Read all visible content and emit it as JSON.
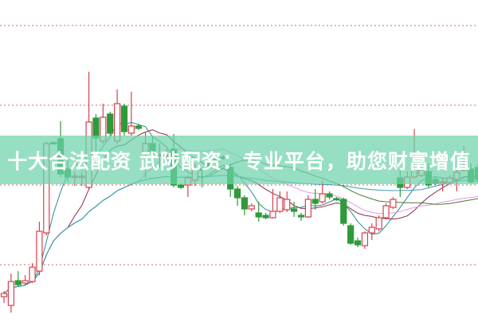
{
  "banner": {
    "title": "十大合法配资 武陟配资：专业平台，助您财富增值"
  },
  "colors": {
    "up": "#d9404e",
    "down": "#2e9a3a",
    "grid": "#d08a8a",
    "banner": "#6ed2aa"
  },
  "chart_data": {
    "type": "candlestick",
    "title": "",
    "xlabel": "",
    "ylabel": "",
    "ylim": [
      3.2,
      43.2
    ],
    "grid": true,
    "gridlines": [
      10,
      20,
      30,
      40
    ],
    "candles_ohlc": [
      [
        6.0,
        6.7,
        5.2,
        6.4
      ],
      [
        4.9,
        8.9,
        4.0,
        7.9
      ],
      [
        8.0,
        9.2,
        7.2,
        7.5
      ],
      [
        7.7,
        8.7,
        7.4,
        8.0
      ],
      [
        7.9,
        10.2,
        7.7,
        9.7
      ],
      [
        9.2,
        15.4,
        8.7,
        14.2
      ],
      [
        14.0,
        25.4,
        13.7,
        25.2
      ],
      [
        25.3,
        25.5,
        25.1,
        25.2
      ],
      [
        25.8,
        28.0,
        21.0,
        21.4
      ],
      [
        22.0,
        23.2,
        20.4,
        21.0
      ],
      [
        21.0,
        21.7,
        19.9,
        21.1
      ],
      [
        21.0,
        21.7,
        19.9,
        21.1
      ],
      [
        19.7,
        34.2,
        19.4,
        27.9
      ],
      [
        28.4,
        28.9,
        24.2,
        25.9
      ],
      [
        25.5,
        30.2,
        25.2,
        28.5
      ],
      [
        28.9,
        29.2,
        26.2,
        26.5
      ],
      [
        25.5,
        32.0,
        25.2,
        30.2
      ],
      [
        29.9,
        30.2,
        26.2,
        26.7
      ],
      [
        26.5,
        31.7,
        26.2,
        27.4
      ],
      [
        27.4,
        27.7,
        26.9,
        27.1
      ],
      [
        23.9,
        26.7,
        20.9,
        25.2
      ],
      [
        25.2,
        26.2,
        23.2,
        23.9
      ],
      [
        23.7,
        25.2,
        22.2,
        23.8
      ],
      [
        23.6,
        24.5,
        22.8,
        23.7
      ],
      [
        24.5,
        26.4,
        19.7,
        20.0
      ],
      [
        20.0,
        20.2,
        19.5,
        19.7
      ],
      [
        20.0,
        21.2,
        18.5,
        20.9
      ],
      [
        20.6,
        22.7,
        19.9,
        22.0
      ],
      [
        22.0,
        22.2,
        19.7,
        21.9
      ],
      [
        22.7,
        23.2,
        22.0,
        22.2
      ],
      [
        23.2,
        23.4,
        22.6,
        22.9
      ],
      [
        23.5,
        23.7,
        23.2,
        23.4
      ],
      [
        22.2,
        22.7,
        18.5,
        19.5
      ],
      [
        19.5,
        19.9,
        17.4,
        18.4
      ],
      [
        18.4,
        18.7,
        16.2,
        17.0
      ],
      [
        17.0,
        17.7,
        16.7,
        17.4
      ],
      [
        16.5,
        17.9,
        15.4,
        16.0
      ],
      [
        16.2,
        16.5,
        15.7,
        15.9
      ],
      [
        15.9,
        19.5,
        15.8,
        16.7
      ],
      [
        16.7,
        19.2,
        16.5,
        18.4
      ],
      [
        16.9,
        19.2,
        16.6,
        18.2
      ],
      [
        17.0,
        17.9,
        16.0,
        16.7
      ],
      [
        16.2,
        16.5,
        15.5,
        16.0
      ],
      [
        16.0,
        18.7,
        15.9,
        18.2
      ],
      [
        18.2,
        19.5,
        16.9,
        17.7
      ],
      [
        17.9,
        20.5,
        17.7,
        18.9
      ],
      [
        18.9,
        19.2,
        18.2,
        18.5
      ],
      [
        18.3,
        18.5,
        18.0,
        18.2
      ],
      [
        18.2,
        18.4,
        14.9,
        15.2
      ],
      [
        14.9,
        15.2,
        12.5,
        12.7
      ],
      [
        13.0,
        13.4,
        12.2,
        12.5
      ],
      [
        12.4,
        14.2,
        12.0,
        14.0
      ],
      [
        14.0,
        15.2,
        13.1,
        14.7
      ],
      [
        14.5,
        16.2,
        14.2,
        15.9
      ],
      [
        15.9,
        17.7,
        15.7,
        17.4
      ],
      [
        17.2,
        18.5,
        17.0,
        18.2
      ],
      [
        20.9,
        21.9,
        18.5,
        19.7
      ],
      [
        19.7,
        21.7,
        19.5,
        21.0
      ],
      [
        21.0,
        27.0,
        20.8,
        22.0
      ],
      [
        21.2,
        22.4,
        21.0,
        21.9
      ],
      [
        21.7,
        22.7,
        19.7,
        20.0
      ],
      [
        20.7,
        21.0,
        20.0,
        20.2
      ],
      [
        20.3,
        20.9,
        19.2,
        20.4
      ],
      [
        20.3,
        21.2,
        20.1,
        20.9
      ],
      [
        20.7,
        22.0,
        19.2,
        21.6
      ],
      [
        21.9,
        24.9,
        21.7,
        22.0
      ],
      [
        22.0,
        22.7,
        20.2,
        20.4
      ],
      [
        22.2,
        22.7,
        20.4,
        20.7
      ]
    ],
    "moving_averages": [
      {
        "period": 5,
        "color": "#2a8a8a"
      },
      {
        "period": 10,
        "color": "#8a2a4a"
      },
      {
        "period": 20,
        "color": "#e39ae3"
      },
      {
        "period": 30,
        "color": "#4a7a30"
      },
      {
        "period": 60,
        "color": "#3a9ab8"
      }
    ]
  }
}
